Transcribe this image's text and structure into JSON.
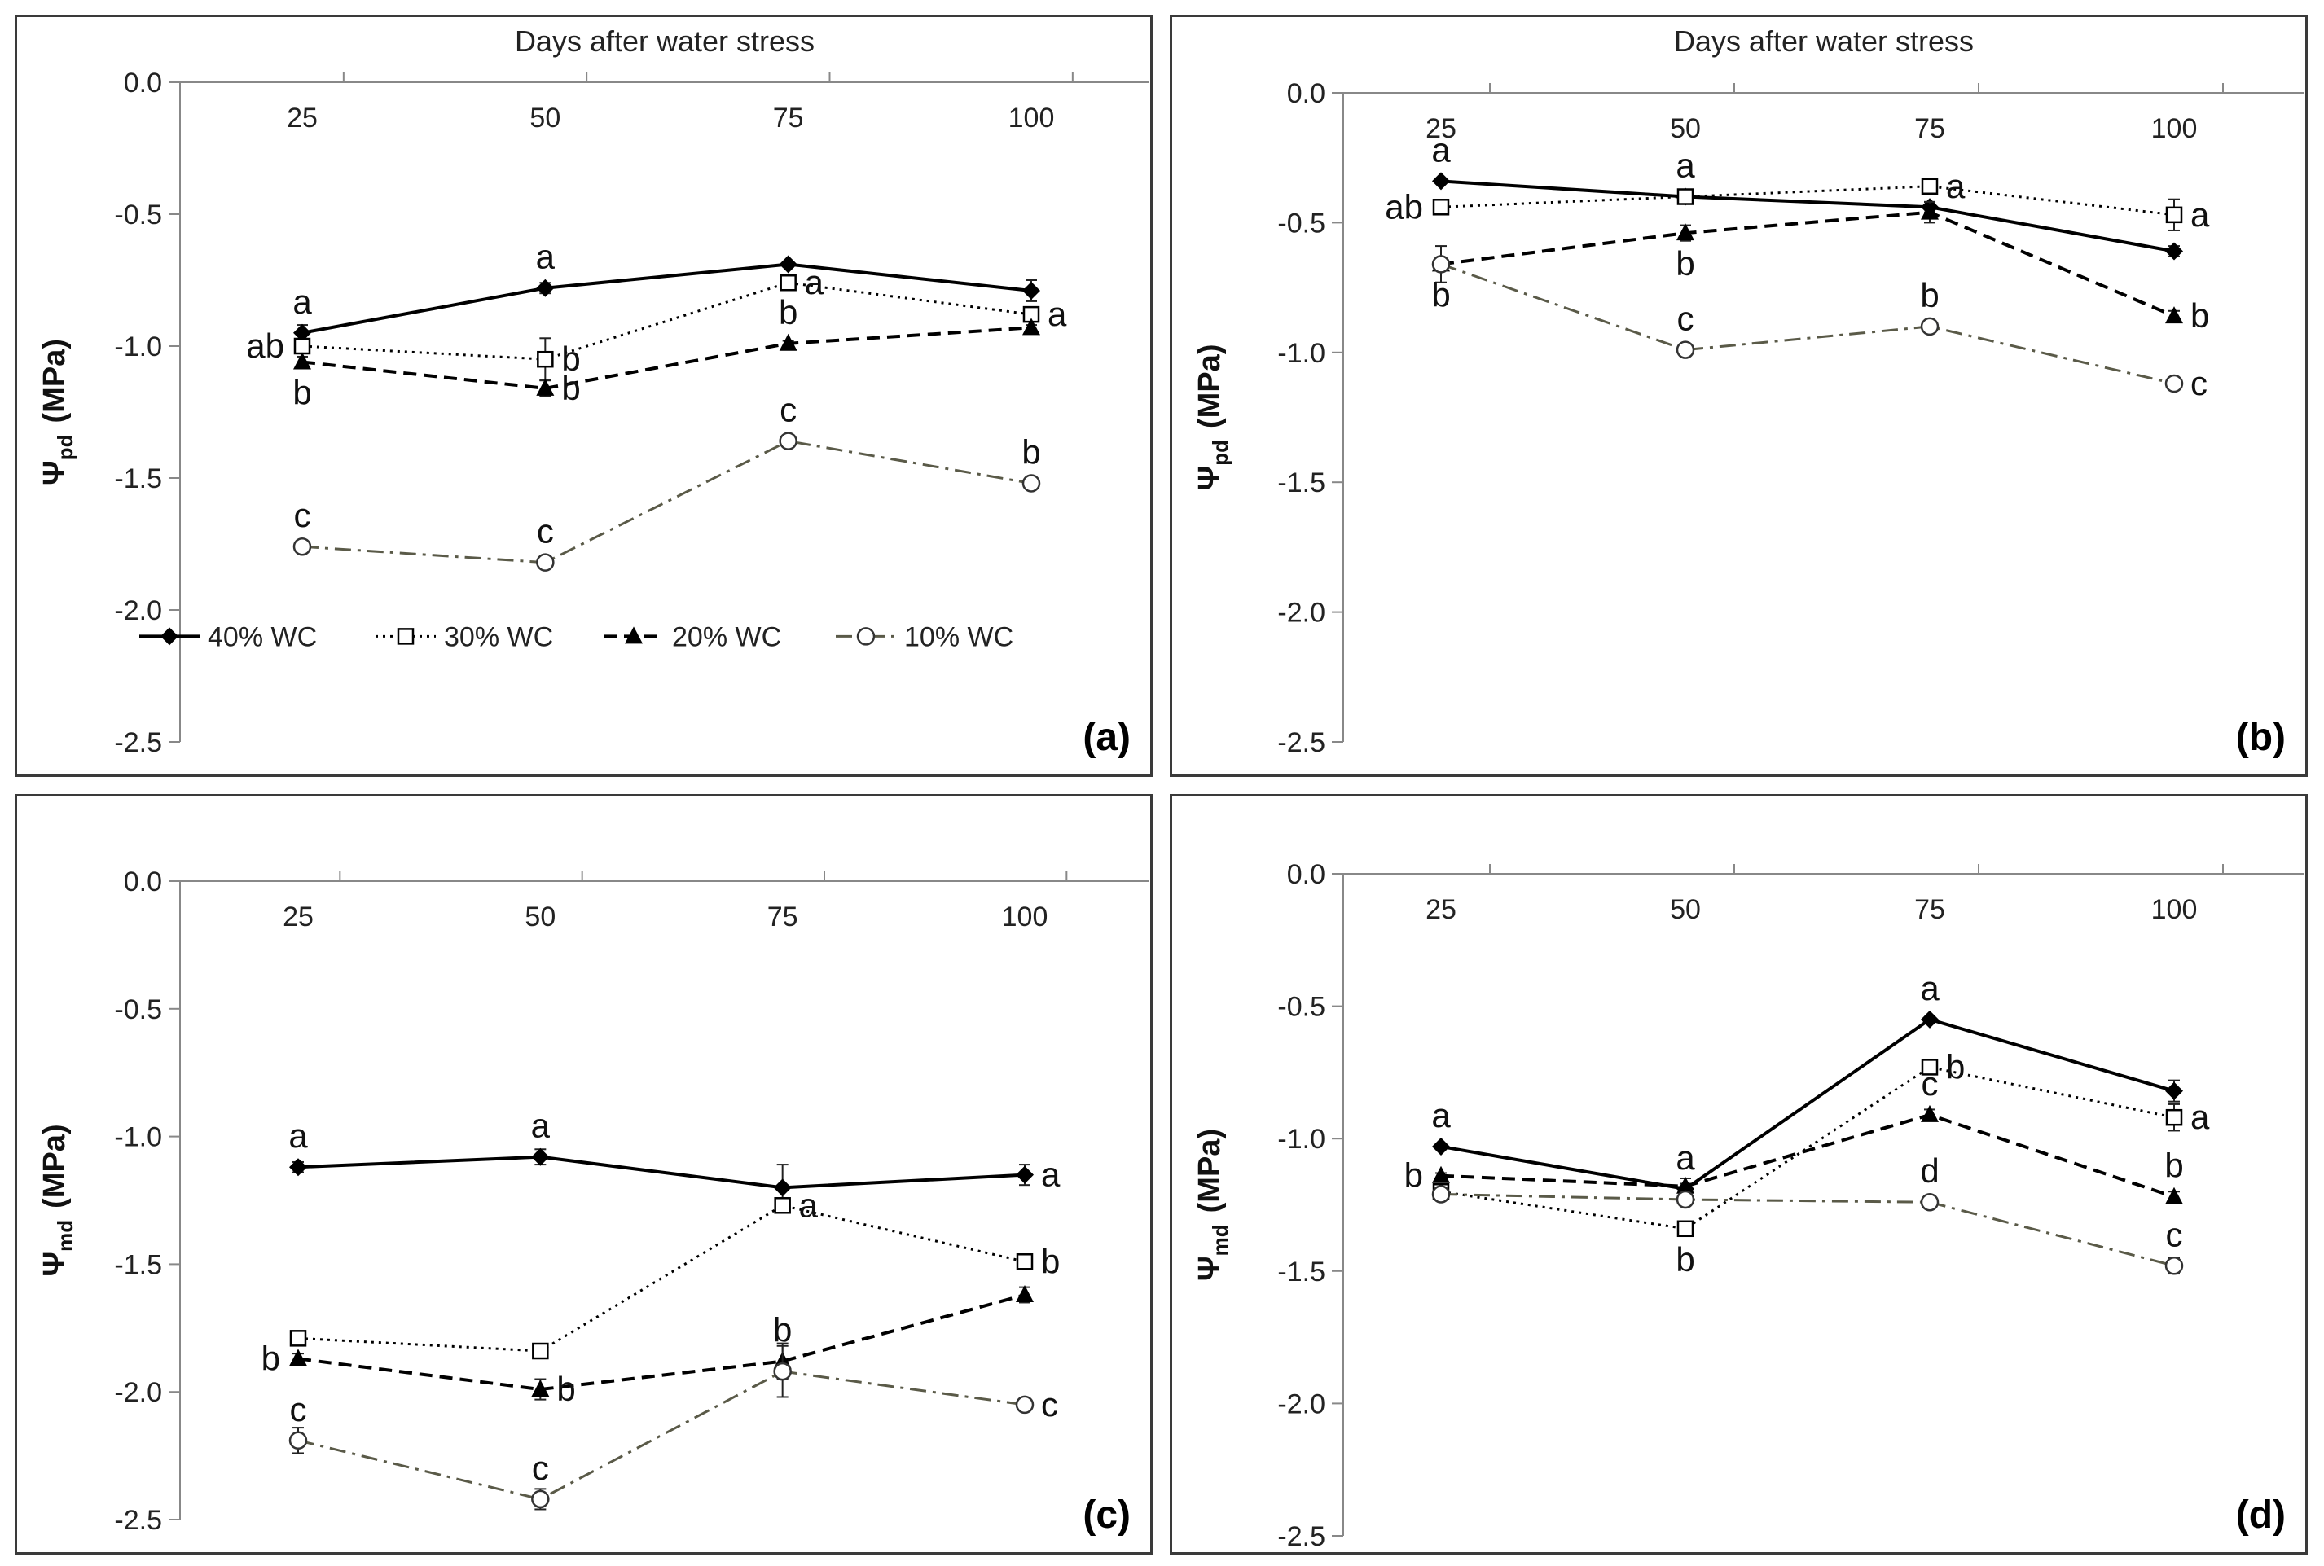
{
  "legend": [
    {
      "label": "40% WC",
      "series": "s40"
    },
    {
      "label": "30% WC",
      "series": "s30"
    },
    {
      "label": "20% WC",
      "series": "s20"
    },
    {
      "label": "10% WC",
      "series": "s10"
    }
  ],
  "chart_data": [
    {
      "type": "line",
      "panel_label": "(a)",
      "title": "Days after water stress",
      "ylabel_main": "Ψ",
      "ylabel_sub": "pd",
      "ylabel_unit": "(MPa)",
      "x": [
        25,
        50,
        75,
        100
      ],
      "ylim": [
        -2.5,
        0.0
      ],
      "yticks": [
        "0.0",
        "-0.5",
        "-1.0",
        "-1.5",
        "-2.0",
        "-2.5"
      ],
      "legend_position": "bottom",
      "series": [
        {
          "name": "40% WC",
          "key": "s40",
          "values": [
            -0.95,
            -0.78,
            -0.69,
            -0.79
          ],
          "err": [
            0.03,
            0.02,
            0.01,
            0.04
          ],
          "letters": [
            {
              "t": "a",
              "pos": "above"
            },
            {
              "t": "a",
              "pos": "above"
            },
            {
              "t": "",
              "pos": "right"
            },
            {
              "t": "",
              "pos": "right"
            }
          ]
        },
        {
          "name": "30% WC",
          "key": "s30",
          "values": [
            -1.0,
            -1.05,
            -0.76,
            -0.88
          ],
          "err": [
            0.02,
            0.08,
            0.02,
            0.02
          ],
          "letters": [
            {
              "t": "ab",
              "pos": "left"
            },
            {
              "t": "b",
              "pos": "right"
            },
            {
              "t": "a",
              "pos": "right"
            },
            {
              "t": "a",
              "pos": "right"
            }
          ]
        },
        {
          "name": "20% WC",
          "key": "s20",
          "values": [
            -1.06,
            -1.16,
            -0.99,
            -0.93
          ],
          "err": [
            0.02,
            0.03,
            0.01,
            0.01
          ],
          "letters": [
            {
              "t": "b",
              "pos": "below"
            },
            {
              "t": "b",
              "pos": "right"
            },
            {
              "t": "b",
              "pos": "above"
            },
            {
              "t": "",
              "pos": "right"
            }
          ]
        },
        {
          "name": "10% WC",
          "key": "s10",
          "values": [
            -1.76,
            -1.82,
            -1.36,
            -1.52
          ],
          "err": [
            0.01,
            0.01,
            0.01,
            0.01
          ],
          "letters": [
            {
              "t": "c",
              "pos": "above"
            },
            {
              "t": "c",
              "pos": "above"
            },
            {
              "t": "c",
              "pos": "above"
            },
            {
              "t": "b",
              "pos": "above"
            }
          ]
        }
      ]
    },
    {
      "type": "line",
      "panel_label": "(b)",
      "title": "Days after water stress",
      "ylabel_main": "Ψ",
      "ylabel_sub": "pd",
      "ylabel_unit": "(MPa)",
      "x": [
        25,
        50,
        75,
        100
      ],
      "ylim": [
        -2.5,
        0.0
      ],
      "yticks": [
        "0.0",
        "-0.5",
        "-1.0",
        "-1.5",
        "-2.0",
        "-2.5"
      ],
      "series": [
        {
          "name": "40% WC",
          "key": "s40",
          "values": [
            -0.34,
            -0.4,
            -0.44,
            -0.61
          ],
          "err": [
            0.01,
            0.02,
            0.02,
            0.02
          ],
          "letters": [
            {
              "t": "a",
              "pos": "above"
            },
            {
              "t": "a",
              "pos": "above"
            },
            {
              "t": "",
              "pos": "right"
            },
            {
              "t": "",
              "pos": "right"
            }
          ]
        },
        {
          "name": "30% WC",
          "key": "s30",
          "values": [
            -0.44,
            -0.4,
            -0.36,
            -0.47
          ],
          "err": [
            0.02,
            0.02,
            0.01,
            0.06
          ],
          "letters": [
            {
              "t": "ab",
              "pos": "left"
            },
            {
              "t": "",
              "pos": "right"
            },
            {
              "t": "a",
              "pos": "right"
            },
            {
              "t": "a",
              "pos": "right"
            }
          ]
        },
        {
          "name": "20% WC",
          "key": "s20",
          "values": [
            -0.66,
            -0.54,
            -0.46,
            -0.86
          ],
          "err": [
            0.02,
            0.03,
            0.04,
            0.02
          ],
          "letters": [
            {
              "t": "",
              "pos": "below"
            },
            {
              "t": "b",
              "pos": "below"
            },
            {
              "t": "",
              "pos": "right"
            },
            {
              "t": "b",
              "pos": "right"
            }
          ]
        },
        {
          "name": "10% WC",
          "key": "s10",
          "values": [
            -0.66,
            -0.99,
            -0.9,
            -1.12
          ],
          "err": [
            0.07,
            0.01,
            0.01,
            0.01
          ],
          "letters": [
            {
              "t": "b",
              "pos": "below"
            },
            {
              "t": "c",
              "pos": "above"
            },
            {
              "t": "b",
              "pos": "above"
            },
            {
              "t": "c",
              "pos": "right"
            }
          ]
        }
      ]
    },
    {
      "type": "line",
      "panel_label": "(c)",
      "title": "",
      "ylabel_main": "Ψ",
      "ylabel_sub": "md",
      "ylabel_unit": "(MPa)",
      "x": [
        25,
        50,
        75,
        100
      ],
      "ylim": [
        -2.5,
        0.0
      ],
      "yticks": [
        "0.0",
        "-0.5",
        "-1.0",
        "-1.5",
        "-2.0",
        "-2.5"
      ],
      "series": [
        {
          "name": "40% WC",
          "key": "s40",
          "values": [
            -1.12,
            -1.08,
            -1.2,
            -1.15
          ],
          "err": [
            0.02,
            0.03,
            0.09,
            0.04
          ],
          "letters": [
            {
              "t": "a",
              "pos": "above"
            },
            {
              "t": "a",
              "pos": "above"
            },
            {
              "t": "",
              "pos": "right"
            },
            {
              "t": "a",
              "pos": "right"
            }
          ]
        },
        {
          "name": "30% WC",
          "key": "s30",
          "values": [
            -1.79,
            -1.84,
            -1.27,
            -1.49
          ],
          "err": [
            0.01,
            0.01,
            0.02,
            0.01
          ],
          "letters": [
            {
              "t": "",
              "pos": "left"
            },
            {
              "t": "",
              "pos": "right"
            },
            {
              "t": "a",
              "pos": "right"
            },
            {
              "t": "b",
              "pos": "right"
            }
          ]
        },
        {
          "name": "20% WC",
          "key": "s20",
          "values": [
            -1.87,
            -1.99,
            -1.88,
            -1.62
          ],
          "err": [
            0.02,
            0.04,
            0.07,
            0.03
          ],
          "letters": [
            {
              "t": "b",
              "pos": "left"
            },
            {
              "t": "b",
              "pos": "right"
            },
            {
              "t": "b",
              "pos": "above"
            },
            {
              "t": "",
              "pos": "right"
            }
          ]
        },
        {
          "name": "10% WC",
          "key": "s10",
          "values": [
            -2.19,
            -2.42,
            -1.92,
            -2.05
          ],
          "err": [
            0.05,
            0.04,
            0.1,
            0.01
          ],
          "letters": [
            {
              "t": "c",
              "pos": "above"
            },
            {
              "t": "c",
              "pos": "above"
            },
            {
              "t": "",
              "pos": "above"
            },
            {
              "t": "c",
              "pos": "right"
            }
          ]
        }
      ]
    },
    {
      "type": "line",
      "panel_label": "(d)",
      "title": "",
      "ylabel_main": "Ψ",
      "ylabel_sub": "md",
      "ylabel_unit": "(MPa)",
      "x": [
        25,
        50,
        75,
        100
      ],
      "ylim": [
        -2.5,
        0.0
      ],
      "yticks": [
        "0.0",
        "-0.5",
        "-1.0",
        "-1.5",
        "-2.0",
        "-2.5"
      ],
      "series": [
        {
          "name": "40% WC",
          "key": "s40",
          "values": [
            -1.03,
            -1.19,
            -0.55,
            -0.82
          ],
          "err": [
            0.01,
            0.02,
            0.01,
            0.04
          ],
          "letters": [
            {
              "t": "a",
              "pos": "above"
            },
            {
              "t": "a",
              "pos": "above"
            },
            {
              "t": "a",
              "pos": "above"
            },
            {
              "t": "",
              "pos": "right"
            }
          ]
        },
        {
          "name": "30% WC",
          "key": "s30",
          "values": [
            -1.2,
            -1.34,
            -0.73,
            -0.92
          ],
          "err": [
            0.01,
            0.01,
            0.02,
            0.05
          ],
          "letters": [
            {
              "t": "",
              "pos": "left"
            },
            {
              "t": "b",
              "pos": "below"
            },
            {
              "t": "b",
              "pos": "right"
            },
            {
              "t": "a",
              "pos": "right"
            }
          ]
        },
        {
          "name": "20% WC",
          "key": "s20",
          "values": [
            -1.14,
            -1.18,
            -0.91,
            -1.22
          ],
          "err": [
            0.01,
            0.03,
            0.02,
            0.02
          ],
          "letters": [
            {
              "t": "b",
              "pos": "left"
            },
            {
              "t": "",
              "pos": "right"
            },
            {
              "t": "c",
              "pos": "above"
            },
            {
              "t": "b",
              "pos": "above"
            }
          ]
        },
        {
          "name": "10% WC",
          "key": "s10",
          "values": [
            -1.21,
            -1.23,
            -1.24,
            -1.48
          ],
          "err": [
            0.01,
            0.02,
            0.01,
            0.03
          ],
          "letters": [
            {
              "t": "",
              "pos": "left"
            },
            {
              "t": "",
              "pos": "right"
            },
            {
              "t": "d",
              "pos": "above"
            },
            {
              "t": "c",
              "pos": "above"
            }
          ]
        }
      ]
    }
  ]
}
